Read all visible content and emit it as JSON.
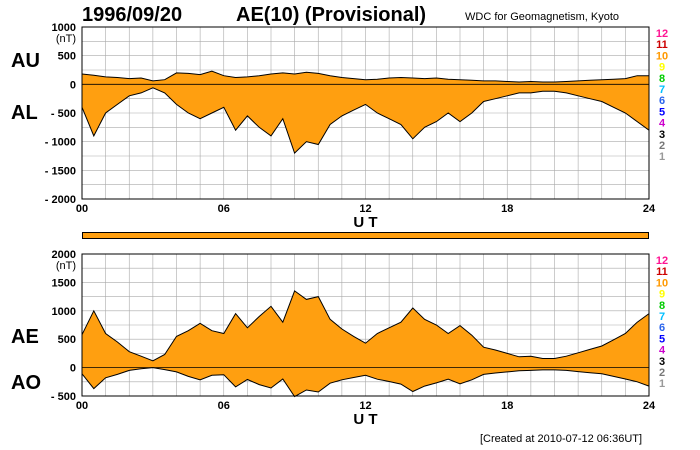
{
  "header": {
    "date": "1996/09/20",
    "title": "AE(10) (Provisional)",
    "source": "WDC for Geomagnetism, Kyoto"
  },
  "footer": {
    "created": "[Created at 2010-07-12 06:36UT]"
  },
  "labels": {
    "au": "AU",
    "al": "AL",
    "ae": "AE",
    "ao": "AO"
  },
  "colors": {
    "fill": "#ff9f10",
    "curve": "#000000",
    "grid": "#aaaaaa",
    "plot_bg": "#ffffff",
    "legend": [
      "#999999",
      "#777777",
      "#000000",
      "#cc00cc",
      "#0000ff",
      "#2b65ec",
      "#00bfff",
      "#00cc00",
      "#ffff00",
      "#ff9900",
      "#cc0000",
      "#ff1493"
    ]
  },
  "legend_numbers": [
    "1",
    "2",
    "3",
    "4",
    "5",
    "6",
    "7",
    "8",
    "9",
    "10",
    "11",
    "12"
  ],
  "chart_data": [
    {
      "id": "au-al",
      "type": "area",
      "xlabel": "U T",
      "unit": "(nT)",
      "xlim": [
        0,
        24
      ],
      "ylim": [
        -2000,
        1000
      ],
      "xticks": [
        "00",
        "06",
        "12",
        "18",
        "24"
      ],
      "yticks": [
        "1000",
        "500",
        "0",
        "- 500",
        "- 1000",
        "- 1500",
        "- 2000"
      ],
      "x": [
        0,
        0.5,
        1,
        1.5,
        2,
        2.5,
        3,
        3.5,
        4,
        4.5,
        5,
        5.5,
        6,
        6.5,
        7,
        7.5,
        8,
        8.5,
        9,
        9.5,
        10,
        10.5,
        11,
        11.5,
        12,
        12.5,
        13,
        13.5,
        14,
        14.5,
        15,
        15.5,
        16,
        16.5,
        17,
        17.5,
        18,
        18.5,
        19,
        19.5,
        20,
        20.5,
        21,
        21.5,
        22,
        22.5,
        23,
        23.5,
        24
      ],
      "series": [
        {
          "name": "AU",
          "values": [
            180,
            160,
            130,
            120,
            100,
            110,
            60,
            80,
            200,
            190,
            170,
            230,
            150,
            120,
            130,
            150,
            180,
            200,
            180,
            210,
            190,
            150,
            120,
            100,
            80,
            90,
            110,
            120,
            110,
            100,
            110,
            90,
            80,
            70,
            60,
            60,
            50,
            40,
            50,
            40,
            40,
            50,
            60,
            70,
            80,
            90,
            100,
            150,
            150
          ]
        },
        {
          "name": "AL",
          "values": [
            -400,
            -900,
            -500,
            -350,
            -200,
            -150,
            -60,
            -150,
            -350,
            -500,
            -600,
            -500,
            -400,
            -800,
            -550,
            -750,
            -900,
            -600,
            -1200,
            -1000,
            -1050,
            -700,
            -550,
            -450,
            -350,
            -500,
            -600,
            -700,
            -950,
            -750,
            -650,
            -500,
            -650,
            -500,
            -300,
            -250,
            -200,
            -150,
            -150,
            -120,
            -120,
            -150,
            -200,
            -250,
            -300,
            -400,
            -500,
            -650,
            -800
          ]
        }
      ]
    },
    {
      "id": "ae-ao",
      "type": "area",
      "xlabel": "U T",
      "unit": "(nT)",
      "xlim": [
        0,
        24
      ],
      "ylim": [
        -500,
        2000
      ],
      "xticks": [
        "00",
        "06",
        "12",
        "18",
        "24"
      ],
      "yticks": [
        "2000",
        "1500",
        "1000",
        "500",
        "0",
        "- 500"
      ],
      "x": [
        0,
        0.5,
        1,
        1.5,
        2,
        2.5,
        3,
        3.5,
        4,
        4.5,
        5,
        5.5,
        6,
        6.5,
        7,
        7.5,
        8,
        8.5,
        9,
        9.5,
        10,
        10.5,
        11,
        11.5,
        12,
        12.5,
        13,
        13.5,
        14,
        14.5,
        15,
        15.5,
        16,
        16.5,
        17,
        17.5,
        18,
        18.5,
        19,
        19.5,
        20,
        20.5,
        21,
        21.5,
        22,
        22.5,
        23,
        23.5,
        24
      ],
      "series": [
        {
          "name": "AE",
          "values": [
            580,
            1000,
            600,
            450,
            280,
            200,
            120,
            230,
            550,
            650,
            780,
            650,
            600,
            950,
            700,
            900,
            1080,
            800,
            1350,
            1200,
            1250,
            850,
            680,
            550,
            430,
            600,
            700,
            800,
            1050,
            850,
            750,
            600,
            740,
            570,
            360,
            310,
            250,
            190,
            200,
            160,
            160,
            200,
            260,
            320,
            380,
            490,
            600,
            800,
            950
          ]
        },
        {
          "name": "AO",
          "values": [
            -110,
            -370,
            -180,
            -120,
            -50,
            -20,
            0,
            -35,
            -75,
            -155,
            -215,
            -135,
            -125,
            -340,
            -210,
            -300,
            -360,
            -200,
            -510,
            -395,
            -430,
            -275,
            -215,
            -175,
            -135,
            -205,
            -245,
            -290,
            -420,
            -325,
            -270,
            -205,
            -285,
            -215,
            -120,
            -95,
            -75,
            -55,
            -50,
            -40,
            -40,
            -50,
            -70,
            -90,
            -110,
            -155,
            -200,
            -250,
            -325
          ]
        }
      ]
    }
  ]
}
